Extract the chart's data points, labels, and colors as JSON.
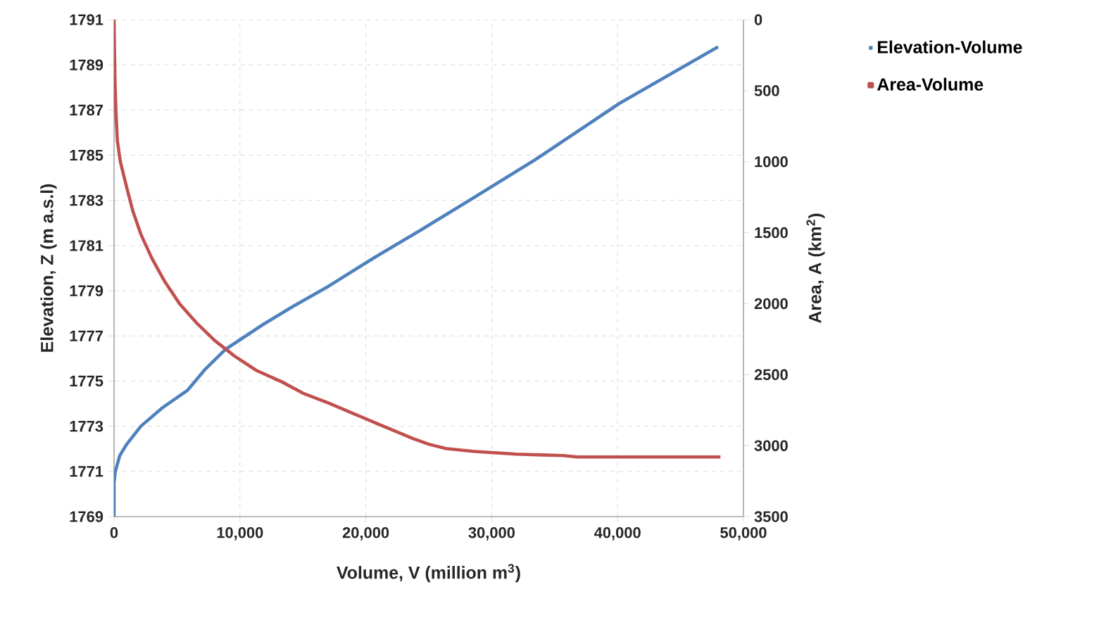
{
  "chart_data": {
    "type": "line",
    "xlabel": "Volume, V (million m$^{3}$)",
    "ylabel": "Elevation, Z  (m a.s.l)",
    "y2label": "Area, A  (km$^{2}$)",
    "xlim": [
      0,
      50000
    ],
    "xticks": [
      0,
      {
        "value": 10000,
        "label": "10,000"
      },
      {
        "value": 20000,
        "label": "20,000"
      },
      {
        "value": 30000,
        "label": "30,000"
      },
      {
        "value": 40000,
        "label": "40,000"
      },
      {
        "value": 50000,
        "label": "50,000"
      }
    ],
    "ylim": [
      1769,
      1791
    ],
    "yticks": [
      1769,
      1771,
      1773,
      1775,
      1777,
      1779,
      1781,
      1783,
      1785,
      1787,
      1789,
      1791
    ],
    "y2lim": [
      3500,
      0
    ],
    "y2ticks": [
      0,
      500,
      1000,
      1500,
      2000,
      2500,
      3000,
      3500
    ],
    "grid": true,
    "legend": "right",
    "series": [
      {
        "name": "Elevation-Volume",
        "color": "#4f81bd",
        "x": [
          0,
          0,
          100,
          450,
          1000,
          2125,
          3800,
          5850,
          7200,
          8840,
          11820,
          14200,
          17040,
          20770,
          24400,
          28220,
          33450,
          40160,
          47990
        ],
        "values": [
          1769,
          1770.5,
          1771,
          1771.7,
          1772.2,
          1773.0,
          1773.8,
          1774.6,
          1775.5,
          1776.4,
          1777.5,
          1778.3,
          1779.2,
          1780.5,
          1781.7,
          1783.0,
          1784.8,
          1787.3,
          1789.8
        ]
      },
      {
        "name": "Area-Volume",
        "color": "#c0504d",
        "axis": "y2",
        "x": [
          0,
          30,
          80,
          150,
          260,
          500,
          1000,
          1500,
          2125,
          3000,
          4000,
          5200,
          6600,
          8000,
          9590,
          11300,
          13310,
          15000,
          17040,
          20770,
          23750,
          25000,
          26360,
          28500,
          31960,
          35680,
          36800,
          48170
        ],
        "values": [
          0,
          200,
          450,
          650,
          850,
          1000,
          1180,
          1350,
          1510,
          1680,
          1840,
          2000,
          2140,
          2260,
          2370,
          2470,
          2550,
          2630,
          2700,
          2840,
          2950,
          2990,
          3020,
          3040,
          3060,
          3070,
          3080,
          3080
        ]
      }
    ]
  }
}
